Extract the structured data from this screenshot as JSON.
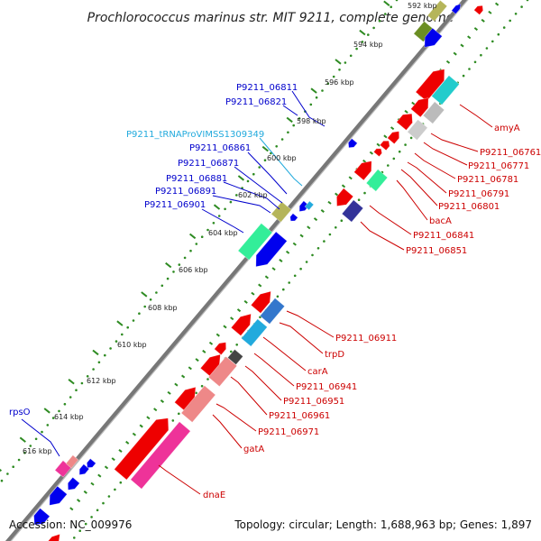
{
  "title": "Prochlorococcus marinus str. MIT 9211, complete genome",
  "footer": {
    "accession": "Accession: NC_009976",
    "summary": "Topology: circular; Length: 1,688,963 bp; Genes: 1,897"
  },
  "scale_labels": [
    "592 kbp",
    "594 kbp",
    "596 kbp",
    "598 kbp",
    "600 kbp",
    "602 kbp",
    "604 kbp",
    "606 kbp",
    "608 kbp",
    "610 kbp",
    "612 kbp",
    "614 kbp",
    "616 kbp"
  ],
  "colors": {
    "backbone": "#888888",
    "dots": "#2e8b22",
    "blue_label": "#0000cc",
    "cyan_label": "#22aadd",
    "red_label": "#cc0000"
  },
  "left_labels": [
    {
      "text": "P9211_06811",
      "color": "#0000cc"
    },
    {
      "text": "P9211_06821",
      "color": "#0000cc"
    },
    {
      "text": "P9211_tRNAProVIMSS1309349",
      "color": "#22aadd"
    },
    {
      "text": "P9211_06861",
      "color": "#0000cc"
    },
    {
      "text": "P9211_06871",
      "color": "#0000cc"
    },
    {
      "text": "P9211_06881",
      "color": "#0000cc"
    },
    {
      "text": "P9211_06891",
      "color": "#0000cc"
    },
    {
      "text": "P9211_06901",
      "color": "#0000cc"
    },
    {
      "text": "rpsO",
      "color": "#0000cc"
    }
  ],
  "right_labels": [
    {
      "text": "amyA",
      "color": "#cc0000"
    },
    {
      "text": "P9211_06761",
      "color": "#cc0000"
    },
    {
      "text": "P9211_06771",
      "color": "#cc0000"
    },
    {
      "text": "P9211_06781",
      "color": "#cc0000"
    },
    {
      "text": "P9211_06791",
      "color": "#cc0000"
    },
    {
      "text": "P9211_06801",
      "color": "#cc0000"
    },
    {
      "text": "bacA",
      "color": "#cc0000"
    },
    {
      "text": "P9211_06841",
      "color": "#cc0000"
    },
    {
      "text": "P9211_06851",
      "color": "#cc0000"
    },
    {
      "text": "P9211_06911",
      "color": "#cc0000"
    },
    {
      "text": "trpD",
      "color": "#cc0000"
    },
    {
      "text": "carA",
      "color": "#cc0000"
    },
    {
      "text": "P9211_06941",
      "color": "#cc0000"
    },
    {
      "text": "P9211_06951",
      "color": "#cc0000"
    },
    {
      "text": "P9211_06961",
      "color": "#cc0000"
    },
    {
      "text": "P9211_06971",
      "color": "#cc0000"
    },
    {
      "text": "gatA",
      "color": "#cc0000"
    },
    {
      "text": "dnaE",
      "color": "#cc0000"
    }
  ]
}
